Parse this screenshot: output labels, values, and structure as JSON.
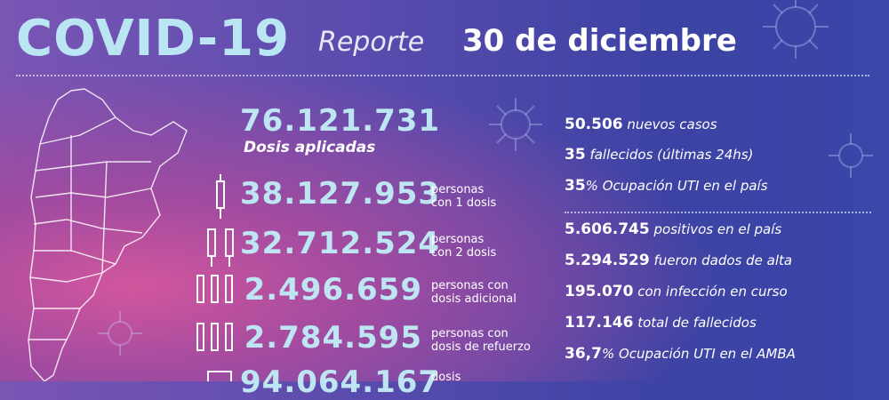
{
  "header": {
    "title": "COVID-19",
    "subtitle": "Reporte",
    "date": "30 de diciembre"
  },
  "doses": {
    "total": "76.121.731",
    "total_label": "Dosis aplicadas",
    "rows": [
      {
        "value": "38.127.953",
        "label1": "personas",
        "label2": "con 1 dosis"
      },
      {
        "value": "32.712.524",
        "label1": "personas",
        "label2": "con 2 dosis"
      },
      {
        "value": "2.496.659",
        "label1": "personas con",
        "label2": "dosis adicional"
      },
      {
        "value": "2.784.595",
        "label1": "personas con",
        "label2": "dosis de refuerzo"
      },
      {
        "value": "94.064.167",
        "label1": "dosis",
        "label2": ""
      }
    ]
  },
  "daily": [
    {
      "value": "50.506",
      "text": "nuevos casos"
    },
    {
      "value": "35",
      "text": "fallecidos (últimas 24hs)"
    },
    {
      "value": "35",
      "text": "% Ocupación UTI en el país"
    }
  ],
  "totals": [
    {
      "value": "5.606.745",
      "text": "positivos en el país"
    },
    {
      "value": "5.294.529",
      "text": "fueron dados de alta"
    },
    {
      "value": "195.070",
      "text": "con infección en curso"
    },
    {
      "value": "117.146",
      "text": "total de fallecidos"
    },
    {
      "value": "36,7",
      "text": "% Ocupación UTI en el AMBA"
    }
  ]
}
